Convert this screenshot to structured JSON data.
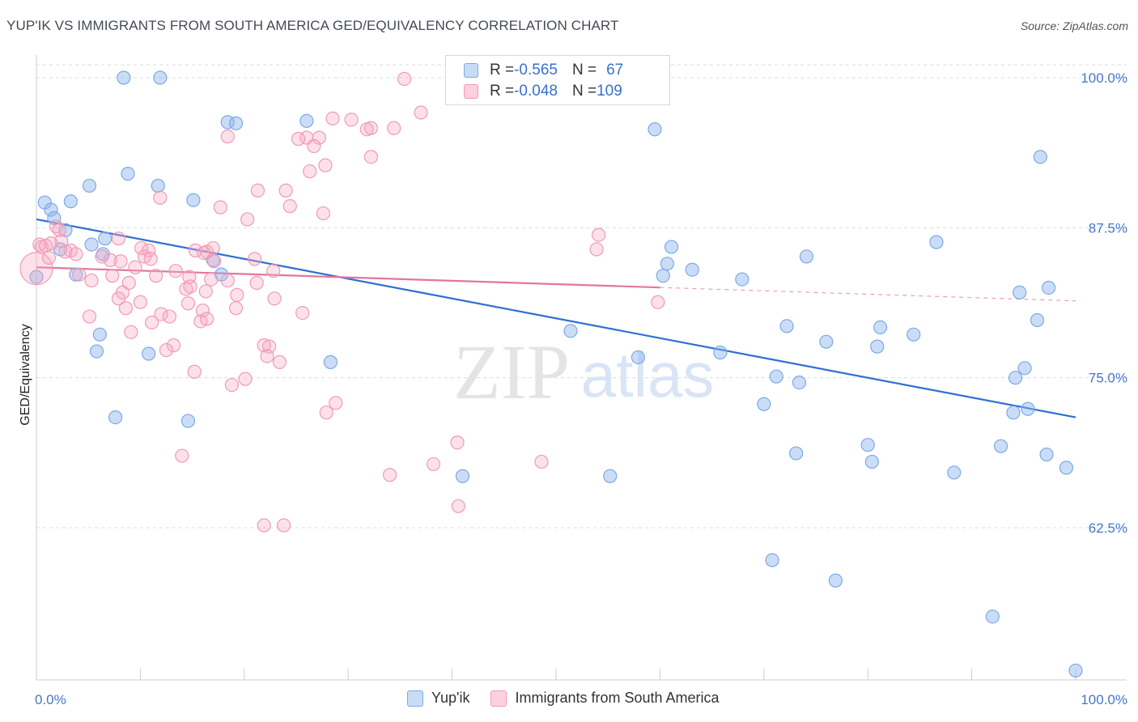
{
  "header": {
    "title": "YUP'IK VS IMMIGRANTS FROM SOUTH AMERICA GED/EQUIVALENCY CORRELATION CHART",
    "source": "Source: ZipAtlas.com"
  },
  "watermark": {
    "zip": "ZIP",
    "atlas": "atlas"
  },
  "legend": {
    "rows": [
      {
        "r_label": "R = ",
        "r_value": "-0.565",
        "n_label": "N = ",
        "n_value": "67",
        "color": "#7aaae6"
      },
      {
        "r_label": "R = ",
        "r_value": "-0.048",
        "n_label": "N = ",
        "n_value": "109",
        "color": "#f19ab5"
      }
    ]
  },
  "bottom_legend": [
    {
      "label": "Yup'ik",
      "color": "#7aaae6"
    },
    {
      "label": "Immigrants from South America",
      "color": "#f19ab5"
    }
  ],
  "chart_data": {
    "type": "scatter",
    "title": "YUP'IK VS IMMIGRANTS FROM SOUTH AMERICA GED/EQUIVALENCY CORRELATION CHART",
    "xlabel": "",
    "ylabel": "GED/Equivalency",
    "xlim": [
      0,
      100
    ],
    "ylim": [
      50.5,
      103
    ],
    "x_tick_labels": [
      "0.0%",
      "100.0%"
    ],
    "y_ticks": [
      62.5,
      75.0,
      87.5,
      100.0
    ],
    "y_tick_labels": [
      "62.5%",
      "75.0%",
      "87.5%",
      "100.0%"
    ],
    "grid": true,
    "series": [
      {
        "name": "Yup'ik",
        "color": "#7aaae6",
        "line_color": "#2e6fd3",
        "trend": {
          "x": [
            0,
            100
          ],
          "y": [
            88.2,
            71.7
          ],
          "dashed_from": null
        },
        "points": [
          [
            8.4,
            100
          ],
          [
            11.9,
            100
          ],
          [
            18.4,
            96.3
          ],
          [
            19.2,
            96.2
          ],
          [
            26.0,
            96.4
          ],
          [
            59.5,
            95.7
          ],
          [
            96.6,
            93.4
          ],
          [
            8.8,
            92.0
          ],
          [
            5.1,
            91.0
          ],
          [
            11.7,
            91.0
          ],
          [
            15.1,
            89.8
          ],
          [
            3.3,
            89.7
          ],
          [
            0.8,
            89.6
          ],
          [
            1.4,
            89.0
          ],
          [
            1.7,
            88.3
          ],
          [
            2.8,
            87.3
          ],
          [
            6.6,
            86.6
          ],
          [
            5.3,
            86.1
          ],
          [
            86.6,
            86.3
          ],
          [
            61.1,
            85.9
          ],
          [
            2.3,
            85.7
          ],
          [
            6.4,
            85.3
          ],
          [
            74.1,
            85.1
          ],
          [
            17.0,
            84.8
          ],
          [
            60.7,
            84.5
          ],
          [
            63.1,
            84.0
          ],
          [
            3.8,
            83.6
          ],
          [
            17.8,
            83.6
          ],
          [
            60.3,
            83.5
          ],
          [
            67.9,
            83.2
          ],
          [
            0,
            83.4
          ],
          [
            97.4,
            82.5
          ],
          [
            94.6,
            82.1
          ],
          [
            96.3,
            79.8
          ],
          [
            72.2,
            79.3
          ],
          [
            81.2,
            79.2
          ],
          [
            51.4,
            78.9
          ],
          [
            6.1,
            78.6
          ],
          [
            76.0,
            78.0
          ],
          [
            84.4,
            78.6
          ],
          [
            80.9,
            77.6
          ],
          [
            10.8,
            77.0
          ],
          [
            5.8,
            77.2
          ],
          [
            65.8,
            77.1
          ],
          [
            57.9,
            76.7
          ],
          [
            28.3,
            76.3
          ],
          [
            95.1,
            75.8
          ],
          [
            94.2,
            75.0
          ],
          [
            71.2,
            75.1
          ],
          [
            73.4,
            74.6
          ],
          [
            70.0,
            72.8
          ],
          [
            95.4,
            72.4
          ],
          [
            94.0,
            72.1
          ],
          [
            7.6,
            71.7
          ],
          [
            14.6,
            71.4
          ],
          [
            80.0,
            69.4
          ],
          [
            92.8,
            69.3
          ],
          [
            73.1,
            68.7
          ],
          [
            97.2,
            68.6
          ],
          [
            80.4,
            68.0
          ],
          [
            99.1,
            67.5
          ],
          [
            88.3,
            67.1
          ],
          [
            41.0,
            66.8
          ],
          [
            55.2,
            66.8
          ],
          [
            70.8,
            59.8
          ],
          [
            76.9,
            58.1
          ],
          [
            92.0,
            55.1
          ],
          [
            100,
            50.6
          ]
        ]
      },
      {
        "name": "Immigrants from South America",
        "color": "#f19ab5",
        "line_color": "#e3769b",
        "trend": {
          "x": [
            0,
            100
          ],
          "y": [
            84.2,
            81.4
          ],
          "dashed_from": 60
        },
        "points": [
          [
            35.4,
            99.9
          ],
          [
            37.0,
            97.1
          ],
          [
            28.5,
            96.6
          ],
          [
            30.3,
            96.5
          ],
          [
            31.8,
            95.7
          ],
          [
            32.2,
            95.8
          ],
          [
            34.4,
            95.8
          ],
          [
            26.0,
            95.0
          ],
          [
            27.2,
            95.0
          ],
          [
            25.2,
            94.9
          ],
          [
            18.4,
            95.1
          ],
          [
            26.7,
            94.3
          ],
          [
            32.2,
            93.4
          ],
          [
            27.8,
            92.7
          ],
          [
            26.3,
            92.2
          ],
          [
            21.3,
            90.6
          ],
          [
            24.0,
            90.6
          ],
          [
            11.9,
            90.0
          ],
          [
            17.7,
            89.2
          ],
          [
            24.4,
            89.3
          ],
          [
            27.6,
            88.7
          ],
          [
            20.3,
            88.2
          ],
          [
            1.9,
            87.6
          ],
          [
            2.2,
            87.3
          ],
          [
            7.9,
            86.6
          ],
          [
            54.1,
            86.9
          ],
          [
            2.4,
            86.4
          ],
          [
            1.4,
            86.2
          ],
          [
            0.3,
            86.1
          ],
          [
            0.5,
            85.9
          ],
          [
            0.9,
            86.0
          ],
          [
            3.3,
            85.6
          ],
          [
            10.1,
            85.8
          ],
          [
            10.8,
            85.6
          ],
          [
            16.4,
            85.5
          ],
          [
            53.9,
            85.7
          ],
          [
            15.3,
            85.6
          ],
          [
            17.0,
            85.8
          ],
          [
            10.4,
            85.1
          ],
          [
            16.1,
            85.4
          ],
          [
            2.8,
            85.5
          ],
          [
            3.8,
            85.3
          ],
          [
            6.3,
            85.1
          ],
          [
            8.1,
            84.7
          ],
          [
            7.1,
            84.8
          ],
          [
            11.0,
            84.9
          ],
          [
            21.0,
            84.9
          ],
          [
            9.5,
            84.2
          ],
          [
            17.1,
            84.7
          ],
          [
            0,
            84.1
          ],
          [
            13.4,
            83.9
          ],
          [
            22.8,
            83.9
          ],
          [
            4.1,
            83.6
          ],
          [
            11.5,
            83.5
          ],
          [
            7.3,
            83.5
          ],
          [
            14.7,
            83.4
          ],
          [
            16.8,
            83.2
          ],
          [
            5.3,
            83.1
          ],
          [
            18.4,
            83.1
          ],
          [
            21.2,
            82.9
          ],
          [
            8.9,
            82.9
          ],
          [
            14.4,
            82.4
          ],
          [
            16.3,
            82.2
          ],
          [
            14.8,
            82.6
          ],
          [
            8.3,
            82.1
          ],
          [
            19.3,
            81.9
          ],
          [
            7.9,
            81.6
          ],
          [
            22.9,
            81.6
          ],
          [
            59.8,
            81.3
          ],
          [
            10.0,
            81.3
          ],
          [
            14.6,
            81.2
          ],
          [
            16.0,
            80.6
          ],
          [
            19.2,
            80.8
          ],
          [
            8.6,
            80.8
          ],
          [
            25.6,
            80.4
          ],
          [
            12.0,
            80.3
          ],
          [
            5.1,
            80.1
          ],
          [
            12.8,
            80.1
          ],
          [
            15.8,
            79.7
          ],
          [
            16.4,
            79.9
          ],
          [
            11.1,
            79.6
          ],
          [
            9.1,
            78.8
          ],
          [
            13.2,
            77.7
          ],
          [
            22.4,
            77.6
          ],
          [
            21.9,
            77.7
          ],
          [
            12.5,
            77.3
          ],
          [
            22.2,
            76.8
          ],
          [
            23.4,
            76.3
          ],
          [
            15.2,
            75.5
          ],
          [
            20.1,
            74.9
          ],
          [
            18.8,
            74.4
          ],
          [
            28.8,
            72.9
          ],
          [
            27.9,
            72.1
          ],
          [
            40.5,
            69.6
          ],
          [
            14.0,
            68.5
          ],
          [
            38.2,
            67.8
          ],
          [
            48.6,
            68.0
          ],
          [
            34.0,
            66.9
          ],
          [
            40.6,
            64.3
          ],
          [
            21.9,
            62.7
          ],
          [
            23.8,
            62.7
          ],
          [
            1.2,
            85.0
          ]
        ]
      }
    ]
  }
}
